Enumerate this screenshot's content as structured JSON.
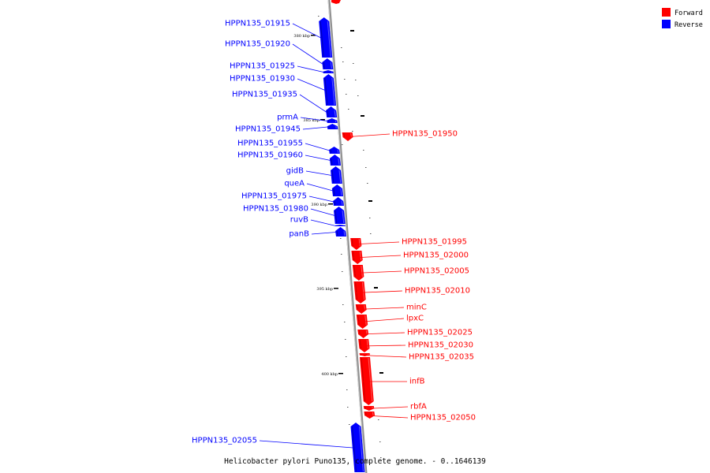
{
  "caption": "Helicobacter pylori Puno135, complete genome. - 0..1646139",
  "legend": [
    {
      "label": "Forward",
      "color": "#ff0000"
    },
    {
      "label": "Reverse",
      "color": "#0000ff"
    }
  ],
  "colors": {
    "forward": "#ff0000",
    "reverse": "#0000ff",
    "backbone": "#808080"
  },
  "ticks": [
    {
      "label": "380 kbp"
    },
    {
      "label": "385 kbp"
    },
    {
      "label": "390 kbp"
    },
    {
      "label": "395 kbp"
    },
    {
      "label": "400 kbp"
    }
  ],
  "genes": [
    {
      "name": "HPPN135_01915",
      "strand": "reverse"
    },
    {
      "name": "HPPN135_01920",
      "strand": "reverse"
    },
    {
      "name": "HPPN135_01925",
      "strand": "reverse"
    },
    {
      "name": "HPPN135_01930",
      "strand": "reverse"
    },
    {
      "name": "HPPN135_01935",
      "strand": "reverse"
    },
    {
      "name": "prmA",
      "strand": "reverse"
    },
    {
      "name": "HPPN135_01945",
      "strand": "reverse"
    },
    {
      "name": "HPPN135_01950",
      "strand": "forward"
    },
    {
      "name": "HPPN135_01955",
      "strand": "reverse"
    },
    {
      "name": "HPPN135_01960",
      "strand": "reverse"
    },
    {
      "name": "gidB",
      "strand": "reverse"
    },
    {
      "name": "queA",
      "strand": "reverse"
    },
    {
      "name": "HPPN135_01975",
      "strand": "reverse"
    },
    {
      "name": "HPPN135_01980",
      "strand": "reverse"
    },
    {
      "name": "ruvB",
      "strand": "reverse"
    },
    {
      "name": "panB",
      "strand": "reverse"
    },
    {
      "name": "HPPN135_01995",
      "strand": "forward"
    },
    {
      "name": "HPPN135_02000",
      "strand": "forward"
    },
    {
      "name": "HPPN135_02005",
      "strand": "forward"
    },
    {
      "name": "HPPN135_02010",
      "strand": "forward"
    },
    {
      "name": "minC",
      "strand": "forward"
    },
    {
      "name": "lpxC",
      "strand": "forward"
    },
    {
      "name": "HPPN135_02025",
      "strand": "forward"
    },
    {
      "name": "HPPN135_02030",
      "strand": "forward"
    },
    {
      "name": "HPPN135_02035",
      "strand": "forward"
    },
    {
      "name": "infB",
      "strand": "forward"
    },
    {
      "name": "rbfA",
      "strand": "forward"
    },
    {
      "name": "HPPN135_02050",
      "strand": "forward"
    },
    {
      "name": "HPPN135_02055",
      "strand": "reverse"
    }
  ]
}
